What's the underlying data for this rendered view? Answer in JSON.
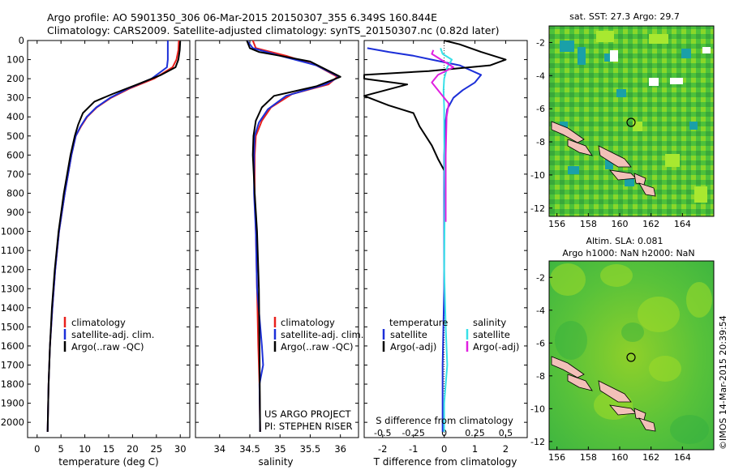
{
  "header": {
    "line1": "Argo profile: AO 5901350_306 06-Mar-2015 20150307_355 6.349S 160.844E",
    "line2": "Climatology: CARS2009. Satellite-adjusted climatology: synTS_20150307.nc (0.82d later)"
  },
  "credit": "©IMOS 14-Mar-2015 20:39:54",
  "colors": {
    "climatology": "#e8201c",
    "satellite": "#1c2fd8",
    "argo": "#000000",
    "sat_salinity": "#38e0e8",
    "argo_salinity": "#e020e0"
  },
  "chart_data": [
    {
      "type": "line",
      "panel": "temperature",
      "xlabel": "temperature (deg C)",
      "ylabel": "",
      "xlim": [
        -2,
        32
      ],
      "ylim": [
        2080,
        0
      ],
      "xticks": [
        0,
        5,
        10,
        15,
        20,
        25,
        30
      ],
      "yticks": [
        0,
        100,
        200,
        300,
        400,
        500,
        600,
        700,
        800,
        900,
        1000,
        1100,
        1200,
        1300,
        1400,
        1500,
        1600,
        1700,
        1800,
        1900,
        2000
      ],
      "legend": [
        "climatology",
        "satellite-adj. clim.",
        "Argo(..raw -QC)"
      ],
      "series": [
        {
          "name": "climatology",
          "color": "#e8201c",
          "x": [
            29.7,
            29.6,
            29.2,
            28.4,
            24.5,
            19.5,
            15.5,
            12.5,
            10.5,
            9.2,
            8.1,
            7.2,
            5.8,
            4.6,
            3.8,
            3.2,
            2.7,
            2.4,
            2.2
          ],
          "y": [
            0,
            50,
            100,
            140,
            200,
            250,
            300,
            350,
            400,
            450,
            500,
            600,
            800,
            1000,
            1200,
            1400,
            1600,
            1800,
            2050
          ]
        },
        {
          "name": "satellite-adj. clim.",
          "color": "#1c2fd8",
          "x": [
            27.4,
            27.4,
            27.4,
            27.2,
            24.0,
            19.2,
            15.3,
            12.4,
            10.4,
            9.1,
            8.1,
            7.2,
            5.8,
            4.6,
            3.8,
            3.2,
            2.7,
            2.4,
            2.2
          ],
          "y": [
            0,
            50,
            100,
            140,
            200,
            250,
            300,
            350,
            400,
            450,
            500,
            600,
            800,
            1000,
            1200,
            1400,
            1600,
            1800,
            2050
          ]
        },
        {
          "name": "Argo(..raw -QC)",
          "color": "#000000",
          "x": [
            30.0,
            29.9,
            29.6,
            29.0,
            26.0,
            21.0,
            15.8,
            12.0,
            9.6,
            8.6,
            7.9,
            7.0,
            5.6,
            4.5,
            3.7,
            3.1,
            2.7,
            2.4,
            2.2
          ],
          "y": [
            4,
            50,
            100,
            140,
            180,
            230,
            280,
            320,
            380,
            440,
            500,
            600,
            800,
            1000,
            1200,
            1400,
            1600,
            1800,
            2050
          ]
        }
      ]
    },
    {
      "type": "line",
      "panel": "salinity",
      "xlabel": "salinity",
      "ylabel": "",
      "xlim": [
        33.6,
        36.3
      ],
      "ylim": [
        2080,
        0
      ],
      "xticks": [
        34,
        34.5,
        35,
        35.5,
        36
      ],
      "legend": [
        "climatology",
        "satellite-adj. clim.",
        "Argo(..raw -QC)"
      ],
      "annotation": [
        "US ARGO PROJECT",
        "PI: STEPHEN RISER"
      ],
      "series": [
        {
          "name": "climatology",
          "color": "#e8201c",
          "x": [
            34.55,
            34.6,
            35.1,
            35.6,
            35.95,
            35.8,
            35.2,
            34.85,
            34.7,
            34.6,
            34.58,
            34.58,
            34.6,
            34.62,
            34.64,
            34.66,
            34.67
          ],
          "y": [
            0,
            40,
            80,
            130,
            190,
            230,
            280,
            350,
            420,
            500,
            600,
            800,
            1000,
            1300,
            1600,
            1800,
            2050
          ]
        },
        {
          "name": "satellite-adj. clim.",
          "color": "#1c2fd8",
          "x": [
            34.45,
            34.55,
            35.0,
            35.6,
            35.98,
            35.75,
            35.1,
            34.8,
            34.65,
            34.58,
            34.57,
            34.57,
            34.6,
            34.62,
            34.7,
            34.72,
            34.66,
            34.67
          ],
          "y": [
            0,
            40,
            80,
            130,
            190,
            230,
            290,
            360,
            430,
            500,
            600,
            800,
            1000,
            1300,
            1600,
            1700,
            1800,
            2050
          ]
        },
        {
          "name": "Argo(..raw -QC)",
          "color": "#000000",
          "x": [
            34.45,
            34.5,
            34.65,
            35.0,
            35.5,
            36.0,
            35.6,
            34.9,
            34.7,
            34.6,
            34.56,
            34.55,
            34.58,
            34.62,
            34.65,
            34.66,
            34.67
          ],
          "y": [
            0,
            40,
            60,
            80,
            110,
            190,
            240,
            290,
            350,
            420,
            500,
            600,
            800,
            1000,
            1300,
            1600,
            2050
          ]
        }
      ]
    },
    {
      "type": "line",
      "panel": "difference",
      "xlabel": "T difference from climatology",
      "xlabel_top": "S difference from climatology",
      "xlim": [
        -2.6,
        2.7
      ],
      "ylim": [
        2080,
        0
      ],
      "xticks": [
        -2,
        -1,
        0,
        1,
        2
      ],
      "xticks_s": [
        -0.5,
        -0.25,
        0,
        0.25,
        0.5
      ],
      "legend_headers": [
        "temperature",
        "salinity"
      ],
      "legend": [
        "satellite",
        "Argo(-adj)",
        "satellite",
        "Argo(-adj)"
      ],
      "series": [
        {
          "name": "temperature satellite",
          "color": "#1c2fd8",
          "x": [
            -2.5,
            -1.8,
            -1.0,
            -0.4,
            0.5,
            1.2,
            1.0,
            0.6,
            0.3,
            0.1,
            0.05,
            0.0,
            0.0,
            0.0,
            -0.05,
            -0.05
          ],
          "y": [
            40,
            60,
            80,
            100,
            130,
            180,
            220,
            260,
            300,
            360,
            420,
            600,
            900,
            1300,
            1700,
            2050
          ]
        },
        {
          "name": "temperature Argo(-adj)",
          "color": "#000000",
          "x": [
            0.0,
            0.5,
            1.2,
            2.0,
            1.5,
            -0.5,
            -2.6,
            -2.6,
            -1.2,
            -2.6,
            -1.8,
            -1.0,
            -0.8,
            -0.4,
            -0.2,
            0.0
          ],
          "y": [
            0,
            20,
            60,
            100,
            130,
            160,
            180,
            200,
            230,
            290,
            340,
            380,
            450,
            550,
            620,
            680
          ]
        },
        {
          "name": "salinity satellite",
          "color": "#38e0e8",
          "x": [
            -0.12,
            -0.05,
            0.25,
            0.1,
            0.0,
            -0.02,
            0.0,
            0.0,
            0.02,
            0.0,
            0.05,
            0.1,
            0.05,
            0.0,
            0.0
          ],
          "y": [
            40,
            70,
            100,
            140,
            200,
            260,
            350,
            500,
            800,
            1200,
            1500,
            1700,
            1800,
            1900,
            2050
          ]
        },
        {
          "name": "salinity Argo(-adj)",
          "color": "#e020e0",
          "x": [
            -0.35,
            -0.4,
            -0.1,
            0.3,
            -0.2,
            -0.4,
            -0.1,
            0.15,
            0.08,
            0.05,
            0.05
          ],
          "y": [
            50,
            70,
            100,
            140,
            180,
            220,
            280,
            330,
            400,
            600,
            950
          ]
        }
      ]
    },
    {
      "type": "heatmap",
      "panel": "sst-map",
      "title": "sat. SST: 27.3  Argo: 29.7",
      "xlim": [
        155.5,
        166
      ],
      "ylim": [
        -12.5,
        -1
      ],
      "xticks": [
        156,
        158,
        160,
        162,
        164
      ],
      "yticks": [
        -2,
        -4,
        -6,
        -8,
        -10,
        -12
      ],
      "marker": {
        "lon": 160.844,
        "lat": -6.349
      }
    },
    {
      "type": "heatmap",
      "panel": "sla-map",
      "title_lines": [
        "Altim. SLA: 0.081",
        "Argo h1000: NaN  h2000: NaN"
      ],
      "xlim": [
        155.5,
        166
      ],
      "ylim": [
        -12.5,
        -1
      ],
      "xticks": [
        156,
        158,
        160,
        162,
        164
      ],
      "yticks": [
        -2,
        -4,
        -6,
        -8,
        -10,
        -12
      ],
      "marker": {
        "lon": 160.844,
        "lat": -6.349
      }
    }
  ]
}
